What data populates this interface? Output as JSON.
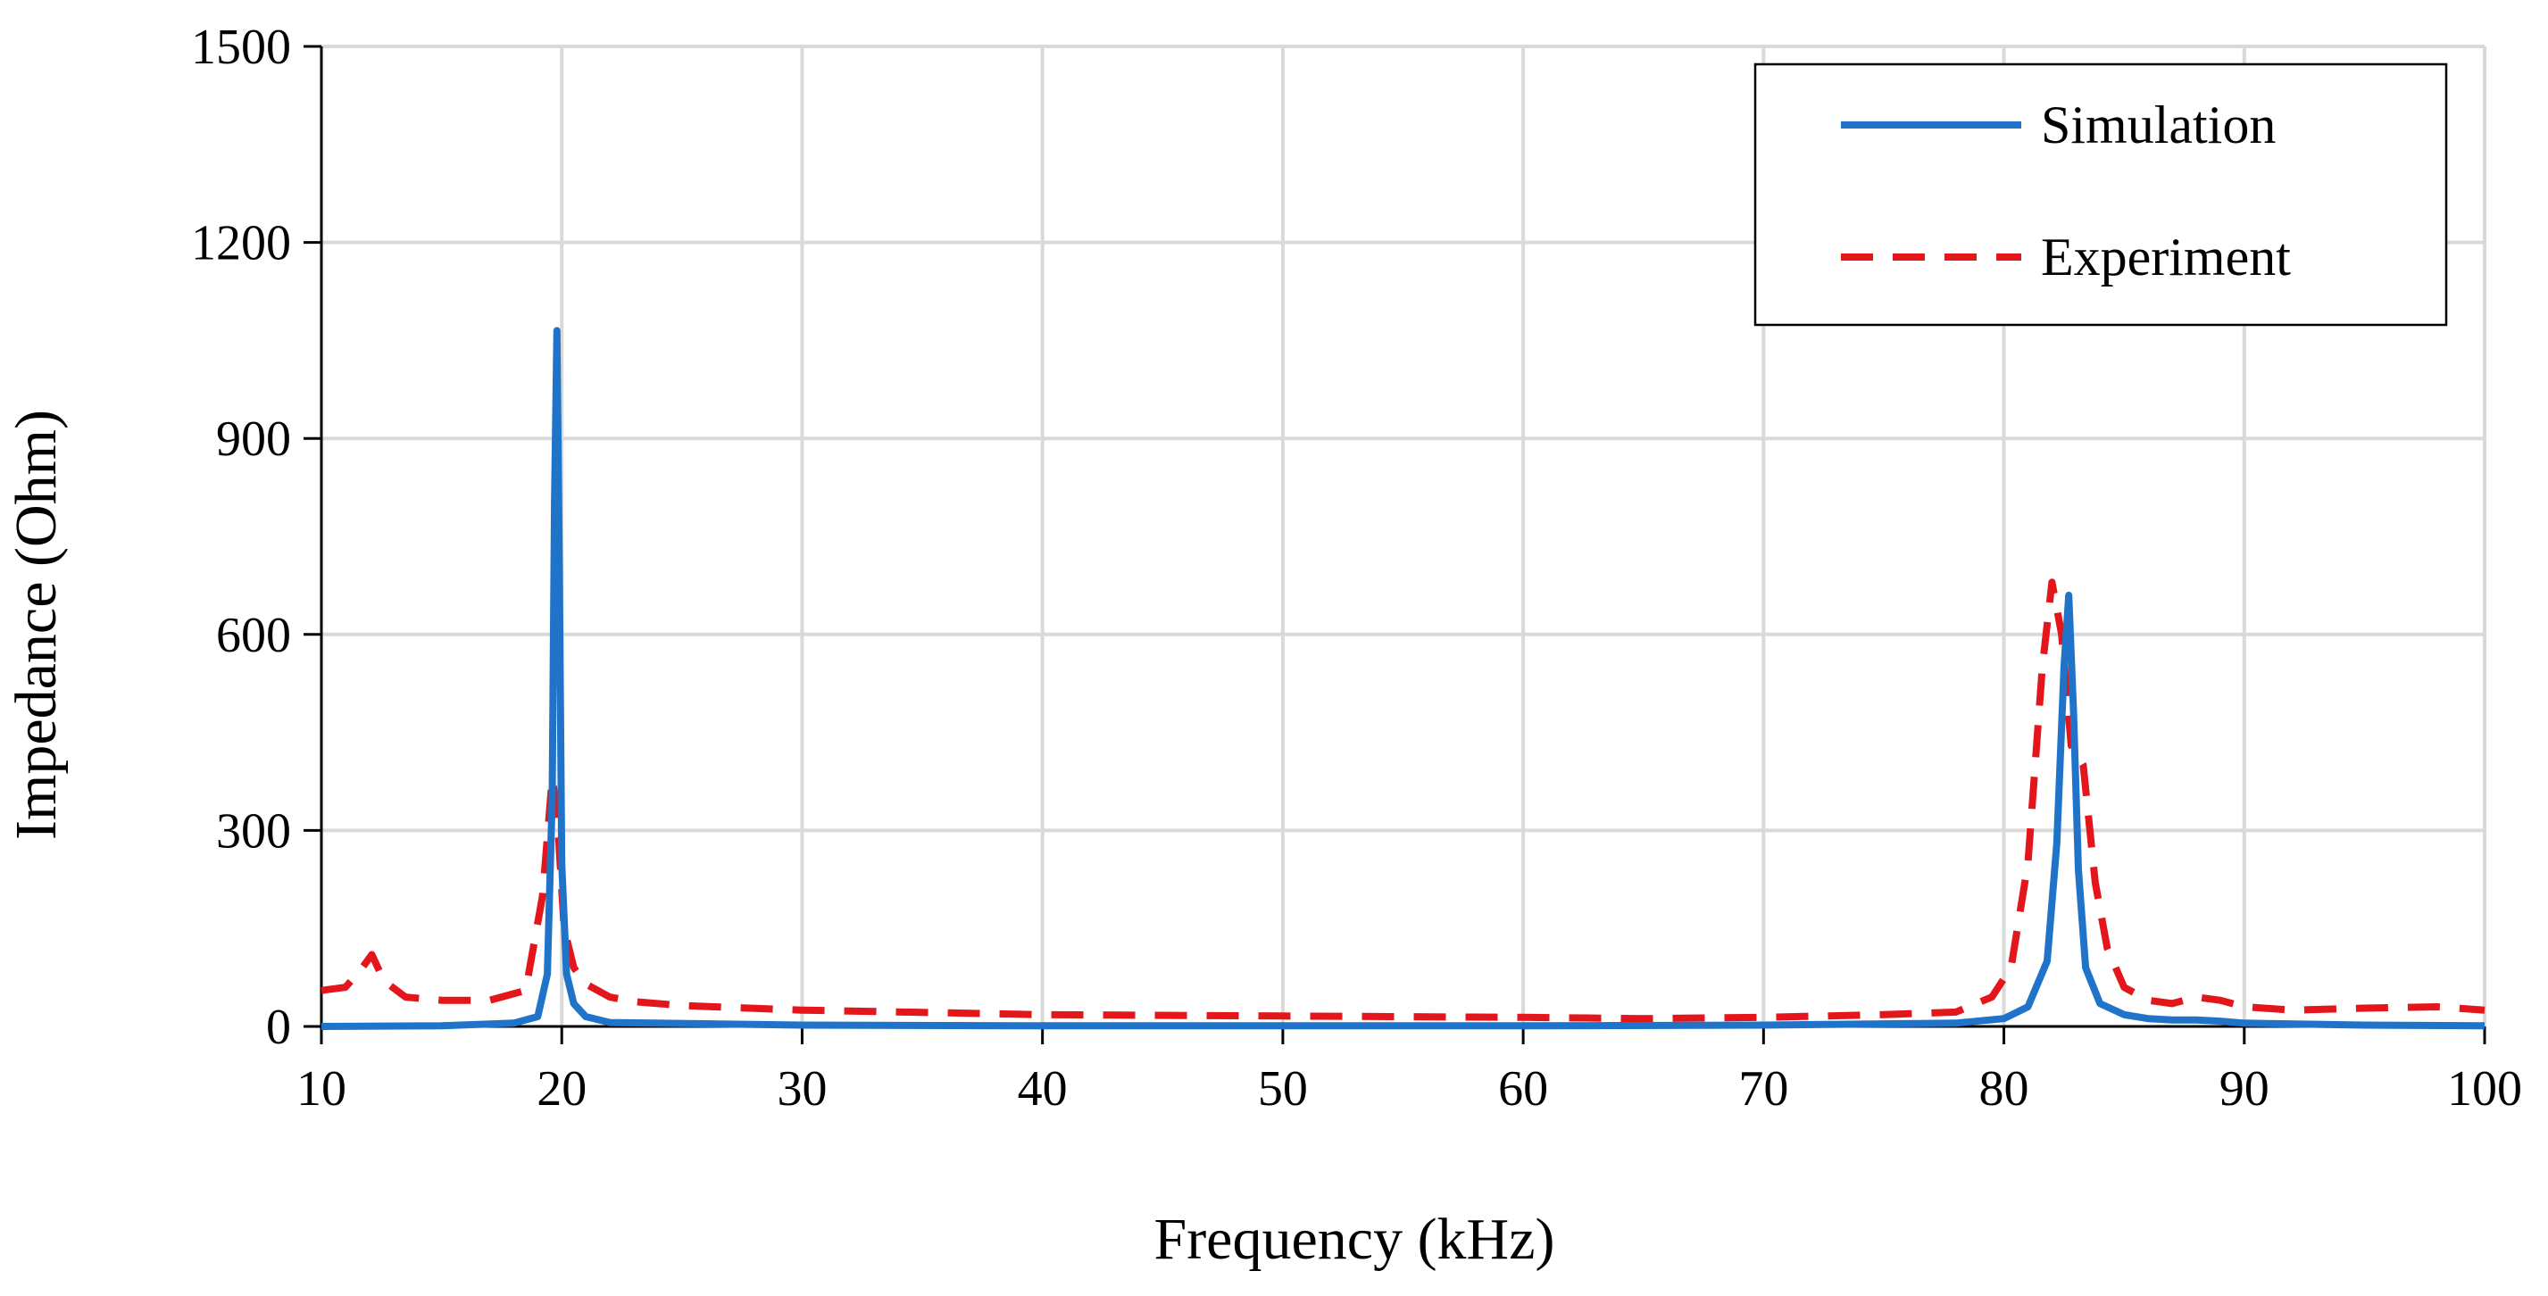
{
  "chart_data": {
    "type": "line",
    "xlabel": "Frequency (kHz)",
    "ylabel": "Impedance (Ohm)",
    "xlim": [
      10,
      100
    ],
    "ylim": [
      0,
      1500
    ],
    "xticks": [
      10,
      20,
      30,
      40,
      50,
      60,
      70,
      80,
      90,
      100
    ],
    "yticks": [
      0,
      300,
      600,
      900,
      1200,
      1500
    ],
    "grid": true,
    "legend_position": "top-right",
    "series": [
      {
        "name": "Simulation",
        "style": "solid",
        "color": "#1f74c9",
        "x": [
          10,
          15,
          18,
          19,
          19.4,
          19.6,
          19.7,
          19.8,
          19.9,
          20.0,
          20.2,
          20.5,
          21,
          22,
          30,
          40,
          50,
          60,
          70,
          78,
          80,
          81,
          81.8,
          82.2,
          82.5,
          82.7,
          82.9,
          83.1,
          83.4,
          84,
          85,
          86,
          87,
          88,
          89,
          90,
          95,
          100
        ],
        "values": [
          0,
          1,
          5,
          15,
          80,
          350,
          800,
          1065,
          700,
          250,
          80,
          35,
          15,
          6,
          2,
          1,
          1,
          1,
          2,
          5,
          12,
          30,
          100,
          280,
          550,
          660,
          480,
          240,
          90,
          35,
          18,
          12,
          10,
          10,
          8,
          5,
          2,
          1
        ]
      },
      {
        "name": "Experiment",
        "style": "dashed",
        "color": "#e3161b",
        "x": [
          10,
          11,
          11.6,
          12.1,
          12.6,
          13.5,
          15,
          17,
          18.5,
          19.2,
          19.6,
          19.8,
          20.1,
          20.5,
          21,
          22,
          23,
          25,
          30,
          40,
          50,
          60,
          65,
          70,
          75,
          78,
          79.5,
          80.3,
          81,
          81.6,
          82.0,
          82.4,
          82.8,
          83.3,
          83.8,
          84.3,
          85,
          86,
          87,
          88,
          89,
          90,
          92,
          95,
          98,
          100
        ],
        "values": [
          55,
          60,
          85,
          110,
          70,
          45,
          40,
          40,
          55,
          200,
          380,
          330,
          150,
          90,
          65,
          45,
          38,
          32,
          25,
          18,
          16,
          14,
          12,
          14,
          18,
          22,
          45,
          90,
          250,
          550,
          680,
          600,
          430,
          400,
          220,
          120,
          60,
          40,
          35,
          45,
          40,
          30,
          25,
          28,
          30,
          25
        ]
      }
    ]
  }
}
